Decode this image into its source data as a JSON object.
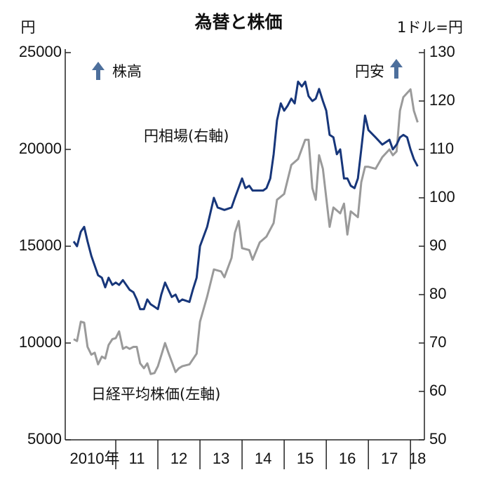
{
  "chart_data": {
    "type": "line",
    "title": "為替と株価",
    "y_unit": "円",
    "y2_unit": "1ドル=円",
    "annotations": [
      {
        "text": "株高",
        "axis": "y"
      },
      {
        "text": "円安",
        "axis": "y2"
      }
    ],
    "xlim": [
      2009.8,
      2018.33
    ],
    "xticks": [
      2011,
      2012,
      2013,
      2014,
      2015,
      2016,
      2017,
      2018
    ],
    "year_labels": [
      "2010年",
      "11",
      "12",
      "13",
      "14",
      "15",
      "16",
      "17",
      "18"
    ],
    "ylim": [
      5000,
      25000
    ],
    "yticks": [
      5000,
      10000,
      15000,
      20000,
      25000
    ],
    "y2lim": [
      50,
      130
    ],
    "y2ticks": [
      50,
      60,
      70,
      80,
      90,
      100,
      110,
      120,
      130
    ],
    "series": [
      {
        "name": "日経平均株価(左軸)",
        "color": "#9a9a9a",
        "axis": "y",
        "x": [
          2010.0,
          2010.08,
          2010.17,
          2010.25,
          2010.33,
          2010.42,
          2010.5,
          2010.58,
          2010.67,
          2010.75,
          2010.83,
          2010.92,
          2011.0,
          2011.08,
          2011.17,
          2011.25,
          2011.33,
          2011.42,
          2011.5,
          2011.58,
          2011.67,
          2011.75,
          2011.83,
          2011.92,
          2012.0,
          2012.17,
          2012.25,
          2012.42,
          2012.5,
          2012.58,
          2012.75,
          2012.92,
          2013.0,
          2013.17,
          2013.33,
          2013.5,
          2013.58,
          2013.75,
          2013.83,
          2013.92,
          2014.0,
          2014.17,
          2014.25,
          2014.42,
          2014.58,
          2014.75,
          2014.83,
          2015.0,
          2015.17,
          2015.33,
          2015.5,
          2015.58,
          2015.67,
          2015.75,
          2015.83,
          2015.92,
          2016.0,
          2016.08,
          2016.17,
          2016.33,
          2016.42,
          2016.5,
          2016.58,
          2016.75,
          2016.83,
          2016.92,
          2017.0,
          2017.17,
          2017.33,
          2017.5,
          2017.58,
          2017.67,
          2017.75,
          2017.83,
          2018.0,
          2018.08,
          2018.17
        ],
        "values": [
          10200,
          10100,
          11100,
          11050,
          9800,
          9400,
          9500,
          8900,
          9300,
          9200,
          9900,
          10200,
          10250,
          10600,
          9700,
          9800,
          9700,
          9800,
          9800,
          8950,
          8700,
          8950,
          8400,
          8450,
          8800,
          10000,
          9500,
          8500,
          8700,
          8800,
          8900,
          9450,
          11100,
          12400,
          13800,
          13700,
          13400,
          14400,
          15700,
          16300,
          14900,
          14800,
          14300,
          15200,
          15500,
          16200,
          17400,
          17700,
          19200,
          19500,
          20500,
          20500,
          18000,
          17400,
          19700,
          19000,
          17500,
          16000,
          17000,
          16700,
          17200,
          15600,
          16800,
          16500,
          18300,
          19100,
          19100,
          19000,
          19600,
          20000,
          19700,
          19900,
          22000,
          22700,
          23100,
          22000,
          21400
        ]
      },
      {
        "name": "円相場(右軸)",
        "color": "#17367a",
        "axis": "y2",
        "x": [
          2010.0,
          2010.08,
          2010.17,
          2010.25,
          2010.33,
          2010.42,
          2010.5,
          2010.58,
          2010.67,
          2010.75,
          2010.83,
          2010.92,
          2011.0,
          2011.08,
          2011.17,
          2011.25,
          2011.33,
          2011.42,
          2011.5,
          2011.58,
          2011.67,
          2011.75,
          2011.83,
          2011.92,
          2012.0,
          2012.08,
          2012.17,
          2012.25,
          2012.33,
          2012.42,
          2012.5,
          2012.58,
          2012.75,
          2012.83,
          2012.92,
          2013.0,
          2013.17,
          2013.33,
          2013.42,
          2013.58,
          2013.75,
          2013.83,
          2014.0,
          2014.08,
          2014.17,
          2014.25,
          2014.5,
          2014.58,
          2014.67,
          2014.75,
          2014.83,
          2014.92,
          2015.0,
          2015.08,
          2015.17,
          2015.25,
          2015.33,
          2015.42,
          2015.5,
          2015.58,
          2015.67,
          2015.75,
          2015.83,
          2015.92,
          2016.0,
          2016.08,
          2016.17,
          2016.25,
          2016.33,
          2016.42,
          2016.5,
          2016.58,
          2016.67,
          2016.75,
          2016.83,
          2016.92,
          2017.0,
          2017.17,
          2017.33,
          2017.5,
          2017.58,
          2017.67,
          2017.75,
          2017.83,
          2017.92,
          2018.0,
          2018.08,
          2018.17
        ],
        "values": [
          91,
          90,
          93,
          94,
          91,
          88,
          86,
          84,
          83.5,
          81.5,
          83.5,
          82,
          82.5,
          82,
          83,
          82,
          81,
          80.5,
          79,
          77,
          77,
          79,
          78,
          77.5,
          77,
          80,
          82.5,
          81,
          79.5,
          80,
          78.5,
          79,
          78.5,
          81,
          83.5,
          90,
          94,
          100,
          98,
          97.5,
          98,
          100,
          104,
          102,
          102.5,
          101.5,
          101.5,
          102,
          104,
          109,
          116,
          119.5,
          118,
          119,
          120.5,
          119.5,
          124,
          123,
          124,
          121,
          120,
          120.5,
          122.5,
          120,
          118,
          113,
          112.5,
          109,
          110,
          104,
          104,
          102.5,
          102,
          104,
          110,
          117,
          114,
          112.5,
          111,
          112,
          110,
          111,
          112.5,
          113,
          112.5,
          110,
          108,
          106.5
        ]
      }
    ]
  }
}
